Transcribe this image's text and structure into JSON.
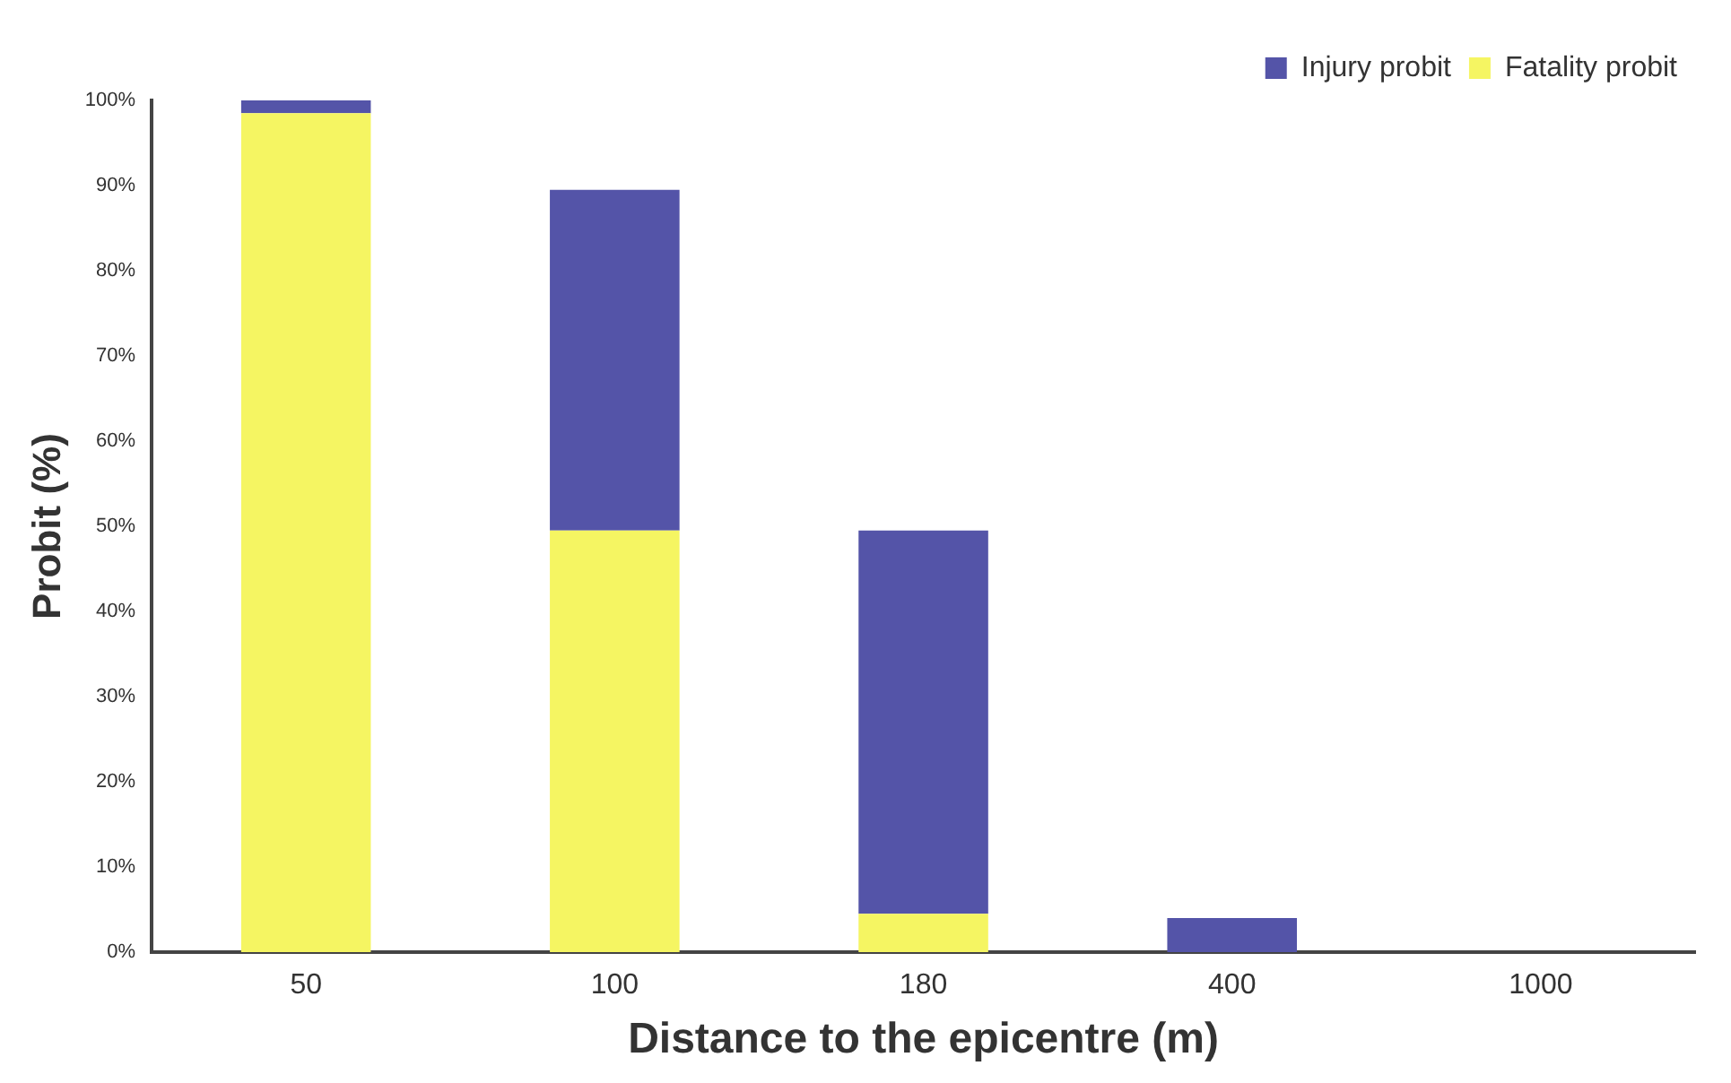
{
  "chart_data": {
    "type": "bar",
    "stacked": true,
    "xlabel": "Distance to the epicentre (m)",
    "ylabel": "Probit (%)",
    "categories": [
      "50",
      "100",
      "180",
      "400",
      "1000"
    ],
    "series": [
      {
        "name": "Fatality probit",
        "color": "#f5f562",
        "values": [
          98.5,
          49.5,
          4.5,
          0,
          0
        ]
      },
      {
        "name": "Injury probit",
        "color": "#5454a8",
        "values": [
          1.5,
          40,
          45,
          4,
          0
        ]
      }
    ],
    "ylim": [
      0,
      100
    ],
    "yticks": [
      {
        "value": 0,
        "label": "0%"
      },
      {
        "value": 10,
        "label": "10%"
      },
      {
        "value": 20,
        "label": "20%"
      },
      {
        "value": 30,
        "label": "30%"
      },
      {
        "value": 40,
        "label": "40%"
      },
      {
        "value": 50,
        "label": "50%"
      },
      {
        "value": 60,
        "label": "60%"
      },
      {
        "value": 70,
        "label": "70%"
      },
      {
        "value": 80,
        "label": "80%"
      },
      {
        "value": 90,
        "label": "90%"
      },
      {
        "value": 100,
        "label": "100%"
      }
    ],
    "grid": false,
    "legend": "top right"
  }
}
